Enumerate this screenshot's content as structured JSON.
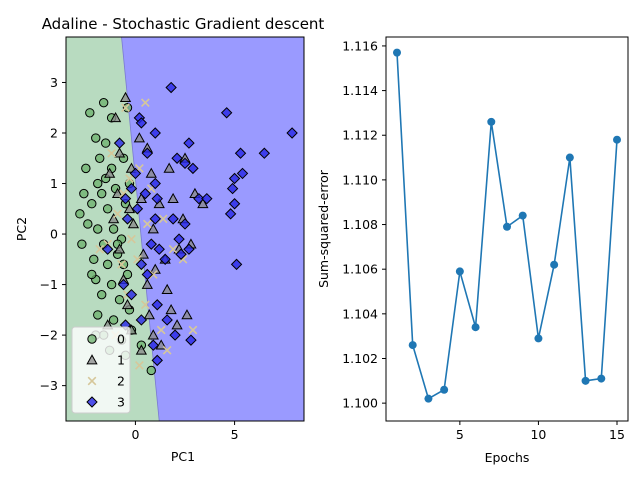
{
  "chart_data": [
    {
      "type": "scatter",
      "title": "Adaline - Stochastic Gradient descent",
      "xlabel": "PC1",
      "ylabel": "PC2",
      "xlim": [
        -3.5,
        8.5
      ],
      "ylim": [
        -3.7,
        3.9
      ],
      "xticks": [
        0,
        5
      ],
      "yticks": [
        -3,
        -2,
        -1,
        0,
        1,
        2,
        3
      ],
      "grid": false,
      "legend_position": "lower-left",
      "decision_regions": {
        "colors": [
          "#b8dbc0",
          "#9a9aff"
        ],
        "boundary": [
          [
            -0.7,
            3.9
          ],
          [
            1.2,
            -3.7
          ]
        ]
      },
      "series": [
        {
          "name": "0",
          "marker": "circle",
          "color": "#6bb06b",
          "points": [
            [
              -2.3,
              2.4
            ],
            [
              -1.6,
              2.6
            ],
            [
              -1.2,
              2.3
            ],
            [
              -2.0,
              1.9
            ],
            [
              -1.5,
              1.8
            ],
            [
              -0.4,
              2.5
            ],
            [
              -1.8,
              1.5
            ],
            [
              -2.5,
              1.3
            ],
            [
              -1.2,
              1.3
            ],
            [
              -0.6,
              1.5
            ],
            [
              -1.9,
              1.0
            ],
            [
              -2.6,
              0.8
            ],
            [
              -1.7,
              0.8
            ],
            [
              -1.0,
              0.9
            ],
            [
              -2.2,
              0.6
            ],
            [
              -2.8,
              0.4
            ],
            [
              -1.4,
              0.5
            ],
            [
              -0.5,
              0.6
            ],
            [
              -2.4,
              0.2
            ],
            [
              -1.9,
              0.1
            ],
            [
              -1.1,
              0.1
            ],
            [
              -2.7,
              -0.2
            ],
            [
              -1.6,
              -0.2
            ],
            [
              -0.7,
              -0.1
            ],
            [
              -2.1,
              -0.5
            ],
            [
              -1.4,
              -0.6
            ],
            [
              -0.9,
              -0.4
            ],
            [
              -2.0,
              -0.9
            ],
            [
              -1.2,
              -1.0
            ],
            [
              -0.4,
              -0.8
            ],
            [
              -1.7,
              -1.2
            ],
            [
              -0.8,
              -1.3
            ],
            [
              -1.9,
              -1.6
            ],
            [
              -1.1,
              -1.7
            ],
            [
              -0.3,
              -1.5
            ],
            [
              -1.6,
              -2.0
            ],
            [
              -0.7,
              -2.1
            ],
            [
              -1.3,
              -2.3
            ],
            [
              -0.5,
              -2.4
            ],
            [
              0.8,
              -2.7
            ],
            [
              0.3,
              -2.2
            ],
            [
              -0.2,
              -1.9
            ],
            [
              -2.0,
              -2.0
            ],
            [
              -0.9,
              -0.2
            ],
            [
              -1.5,
              1.1
            ],
            [
              -0.3,
              1.0
            ],
            [
              -2.2,
              -0.8
            ],
            [
              -0.6,
              -0.6
            ]
          ]
        },
        {
          "name": "1",
          "marker": "triangle",
          "color": "#888888",
          "points": [
            [
              -1.0,
              2.3
            ],
            [
              -0.5,
              2.7
            ],
            [
              0.2,
              1.9
            ],
            [
              -0.8,
              1.6
            ],
            [
              0.6,
              1.7
            ],
            [
              -1.3,
              1.2
            ],
            [
              -0.2,
              1.3
            ],
            [
              0.8,
              1.2
            ],
            [
              -0.9,
              0.8
            ],
            [
              0.3,
              0.7
            ],
            [
              1.2,
              0.6
            ],
            [
              -1.1,
              0.3
            ],
            [
              -0.1,
              0.2
            ],
            [
              0.9,
              0.1
            ],
            [
              -0.8,
              -0.3
            ],
            [
              0.4,
              -0.4
            ],
            [
              1.5,
              -0.5
            ],
            [
              -0.6,
              -0.9
            ],
            [
              0.6,
              -1.0
            ],
            [
              1.6,
              -1.1
            ],
            [
              -0.4,
              -1.4
            ],
            [
              0.7,
              -1.6
            ],
            [
              1.8,
              -1.5
            ],
            [
              -0.2,
              -1.9
            ],
            [
              0.9,
              -2.0
            ],
            [
              2.1,
              -1.8
            ],
            [
              0.3,
              -2.3
            ],
            [
              1.3,
              -2.2
            ],
            [
              2.6,
              -1.6
            ],
            [
              1.9,
              0.7
            ],
            [
              2.4,
              0.3
            ],
            [
              3.0,
              0.8
            ],
            [
              2.8,
              -0.2
            ],
            [
              -1.4,
              -1.8
            ],
            [
              1.0,
              -0.7
            ],
            [
              2.2,
              -0.3
            ],
            [
              3.4,
              0.6
            ],
            [
              -0.3,
              0.5
            ],
            [
              1.7,
              1.3
            ],
            [
              2.5,
              1.5
            ]
          ]
        },
        {
          "name": "2",
          "marker": "x",
          "color": "#d6c79a",
          "points": [
            [
              -0.5,
              2.5
            ],
            [
              0.5,
              2.6
            ],
            [
              -0.3,
              1.1
            ],
            [
              0.2,
              1.3
            ],
            [
              -0.9,
              0.4
            ],
            [
              0.6,
              0.2
            ],
            [
              -1.4,
              -0.2
            ],
            [
              -1.8,
              -0.3
            ],
            [
              -0.7,
              -0.6
            ],
            [
              0.9,
              -0.8
            ],
            [
              -0.4,
              -1.2
            ],
            [
              0.5,
              -1.4
            ],
            [
              1.3,
              -1.9
            ],
            [
              -1.0,
              -2.0
            ],
            [
              0.2,
              -2.6
            ],
            [
              1.6,
              -2.3
            ],
            [
              -0.2,
              -0.1
            ],
            [
              0.8,
              0.9
            ],
            [
              1.9,
              -0.3
            ],
            [
              2.4,
              -0.5
            ],
            [
              -1.2,
              1.6
            ],
            [
              0.1,
              -0.5
            ],
            [
              1.4,
              0.3
            ],
            [
              -0.6,
              0.8
            ],
            [
              2.9,
              -1.9
            ]
          ]
        },
        {
          "name": "3",
          "marker": "diamond",
          "color": "#2626e6",
          "points": [
            [
              1.8,
              2.9
            ],
            [
              4.6,
              2.4
            ],
            [
              7.9,
              2.0
            ],
            [
              0.2,
              2.3
            ],
            [
              1.0,
              2.0
            ],
            [
              0.3,
              2.2
            ],
            [
              -0.8,
              1.8
            ],
            [
              2.7,
              1.8
            ],
            [
              0.6,
              1.6
            ],
            [
              5.3,
              1.6
            ],
            [
              6.5,
              1.6
            ],
            [
              2.1,
              1.5
            ],
            [
              2.5,
              1.4
            ],
            [
              2.9,
              1.3
            ],
            [
              5.4,
              1.2
            ],
            [
              5.0,
              1.1
            ],
            [
              0.0,
              1.2
            ],
            [
              1.0,
              1.0
            ],
            [
              -0.2,
              0.9
            ],
            [
              4.9,
              0.9
            ],
            [
              0.5,
              0.8
            ],
            [
              3.2,
              0.7
            ],
            [
              -0.5,
              0.7
            ],
            [
              1.1,
              0.7
            ],
            [
              3.6,
              0.7
            ],
            [
              0.1,
              0.5
            ],
            [
              4.8,
              0.4
            ],
            [
              5.0,
              0.6
            ],
            [
              1.9,
              0.3
            ],
            [
              1.0,
              0.3
            ],
            [
              2.5,
              0.2
            ],
            [
              -0.4,
              0.3
            ],
            [
              2.2,
              -0.1
            ],
            [
              0.8,
              -0.2
            ],
            [
              1.2,
              -0.3
            ],
            [
              2.7,
              -0.3
            ],
            [
              2.3,
              -0.4
            ],
            [
              5.1,
              -0.6
            ],
            [
              -1.4,
              -0.3
            ],
            [
              0.3,
              -0.6
            ],
            [
              1.5,
              -0.5
            ],
            [
              0.6,
              -0.8
            ],
            [
              -0.6,
              -1.0
            ],
            [
              -0.2,
              -1.2
            ],
            [
              1.1,
              -1.4
            ],
            [
              -0.5,
              -1.8
            ],
            [
              0.3,
              -1.7
            ],
            [
              1.6,
              -1.7
            ],
            [
              2.0,
              -2.0
            ],
            [
              0.9,
              -2.2
            ],
            [
              2.8,
              -2.1
            ],
            [
              1.1,
              -2.5
            ]
          ]
        }
      ]
    },
    {
      "type": "line",
      "title": "",
      "xlabel": "Epochs",
      "ylabel": "Sum-squared-error",
      "xlim": [
        0.3,
        15.7
      ],
      "ylim": [
        1.0992,
        1.1164
      ],
      "xticks": [
        5,
        10,
        15
      ],
      "yticks": [
        1.1,
        1.102,
        1.104,
        1.106,
        1.108,
        1.11,
        1.112,
        1.114,
        1.116
      ],
      "ytick_labels": [
        "1.100",
        "1.102",
        "1.104",
        "1.106",
        "1.108",
        "1.110",
        "1.112",
        "1.114",
        "1.116"
      ],
      "grid": false,
      "color": "#1f77b4",
      "x": [
        1,
        2,
        3,
        4,
        5,
        6,
        7,
        8,
        9,
        10,
        11,
        12,
        13,
        14,
        15
      ],
      "values": [
        1.1157,
        1.1026,
        1.1002,
        1.1006,
        1.1059,
        1.1034,
        1.1126,
        1.1079,
        1.1084,
        1.1029,
        1.1062,
        1.111,
        1.101,
        1.1011,
        1.1118
      ]
    }
  ]
}
